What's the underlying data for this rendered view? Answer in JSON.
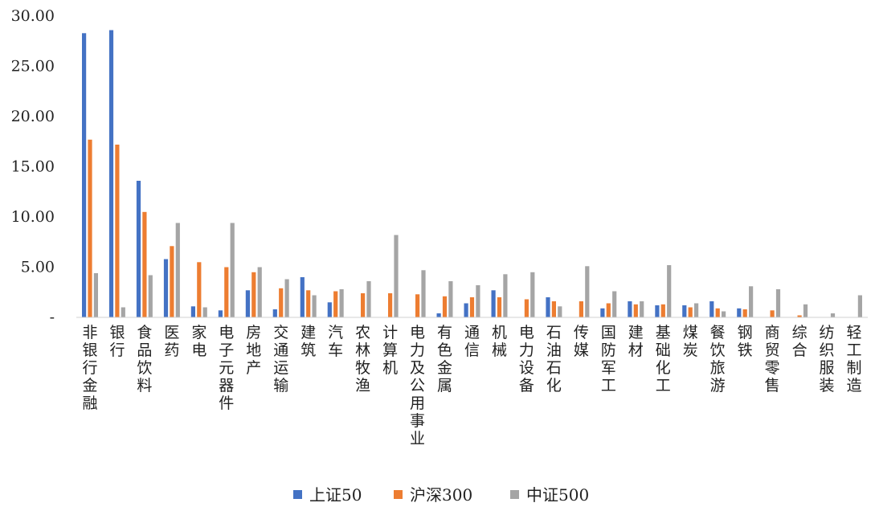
{
  "chart_data": {
    "type": "bar",
    "categories": [
      "非银行金融",
      "银行",
      "食品饮料",
      "医药",
      "家电",
      "电子元器件",
      "房地产",
      "交通运输",
      "建筑",
      "汽车",
      "农林牧渔",
      "计算机",
      "电力及公用事业",
      "有色金属",
      "通信",
      "机械",
      "电力设备",
      "石油石化",
      "传媒",
      "国防军工",
      "建材",
      "基础化工",
      "煤炭",
      "餐饮旅游",
      "钢铁",
      "商贸零售",
      "综合",
      "纺织服装",
      "轻工制造"
    ],
    "series": [
      {
        "name": "上证50",
        "color": "#4472C4",
        "values": [
          28.3,
          28.6,
          13.6,
          5.8,
          1.1,
          0.7,
          2.7,
          0.8,
          4.0,
          1.5,
          0,
          0,
          0,
          0.4,
          1.4,
          2.7,
          0,
          2.0,
          0,
          0.9,
          1.6,
          1.2,
          1.2,
          1.6,
          0.9,
          0,
          0,
          0,
          0
        ]
      },
      {
        "name": "沪深300",
        "color": "#ED7D31",
        "values": [
          17.7,
          17.2,
          10.5,
          7.1,
          5.5,
          5.0,
          4.5,
          2.9,
          2.7,
          2.6,
          2.4,
          2.4,
          2.3,
          2.1,
          2.0,
          2.0,
          1.8,
          1.6,
          1.6,
          1.4,
          1.3,
          1.3,
          1.0,
          0.9,
          0.8,
          0.7,
          0.2,
          0,
          0
        ]
      },
      {
        "name": "中证500",
        "color": "#A5A5A5",
        "values": [
          4.4,
          1.0,
          4.2,
          9.4,
          1.0,
          9.4,
          5.0,
          3.8,
          2.2,
          2.8,
          3.6,
          8.2,
          4.7,
          3.6,
          3.2,
          4.3,
          4.5,
          1.1,
          5.1,
          2.6,
          1.6,
          5.2,
          1.4,
          0.6,
          3.1,
          2.8,
          1.3,
          0.4,
          2.2
        ]
      }
    ],
    "y_ticks": [
      "-",
      "5.00",
      "10.00",
      "15.00",
      "20.00",
      "25.00",
      "30.00"
    ],
    "ylim": [
      0,
      30
    ],
    "grid": false,
    "legend_position": "bottom"
  }
}
